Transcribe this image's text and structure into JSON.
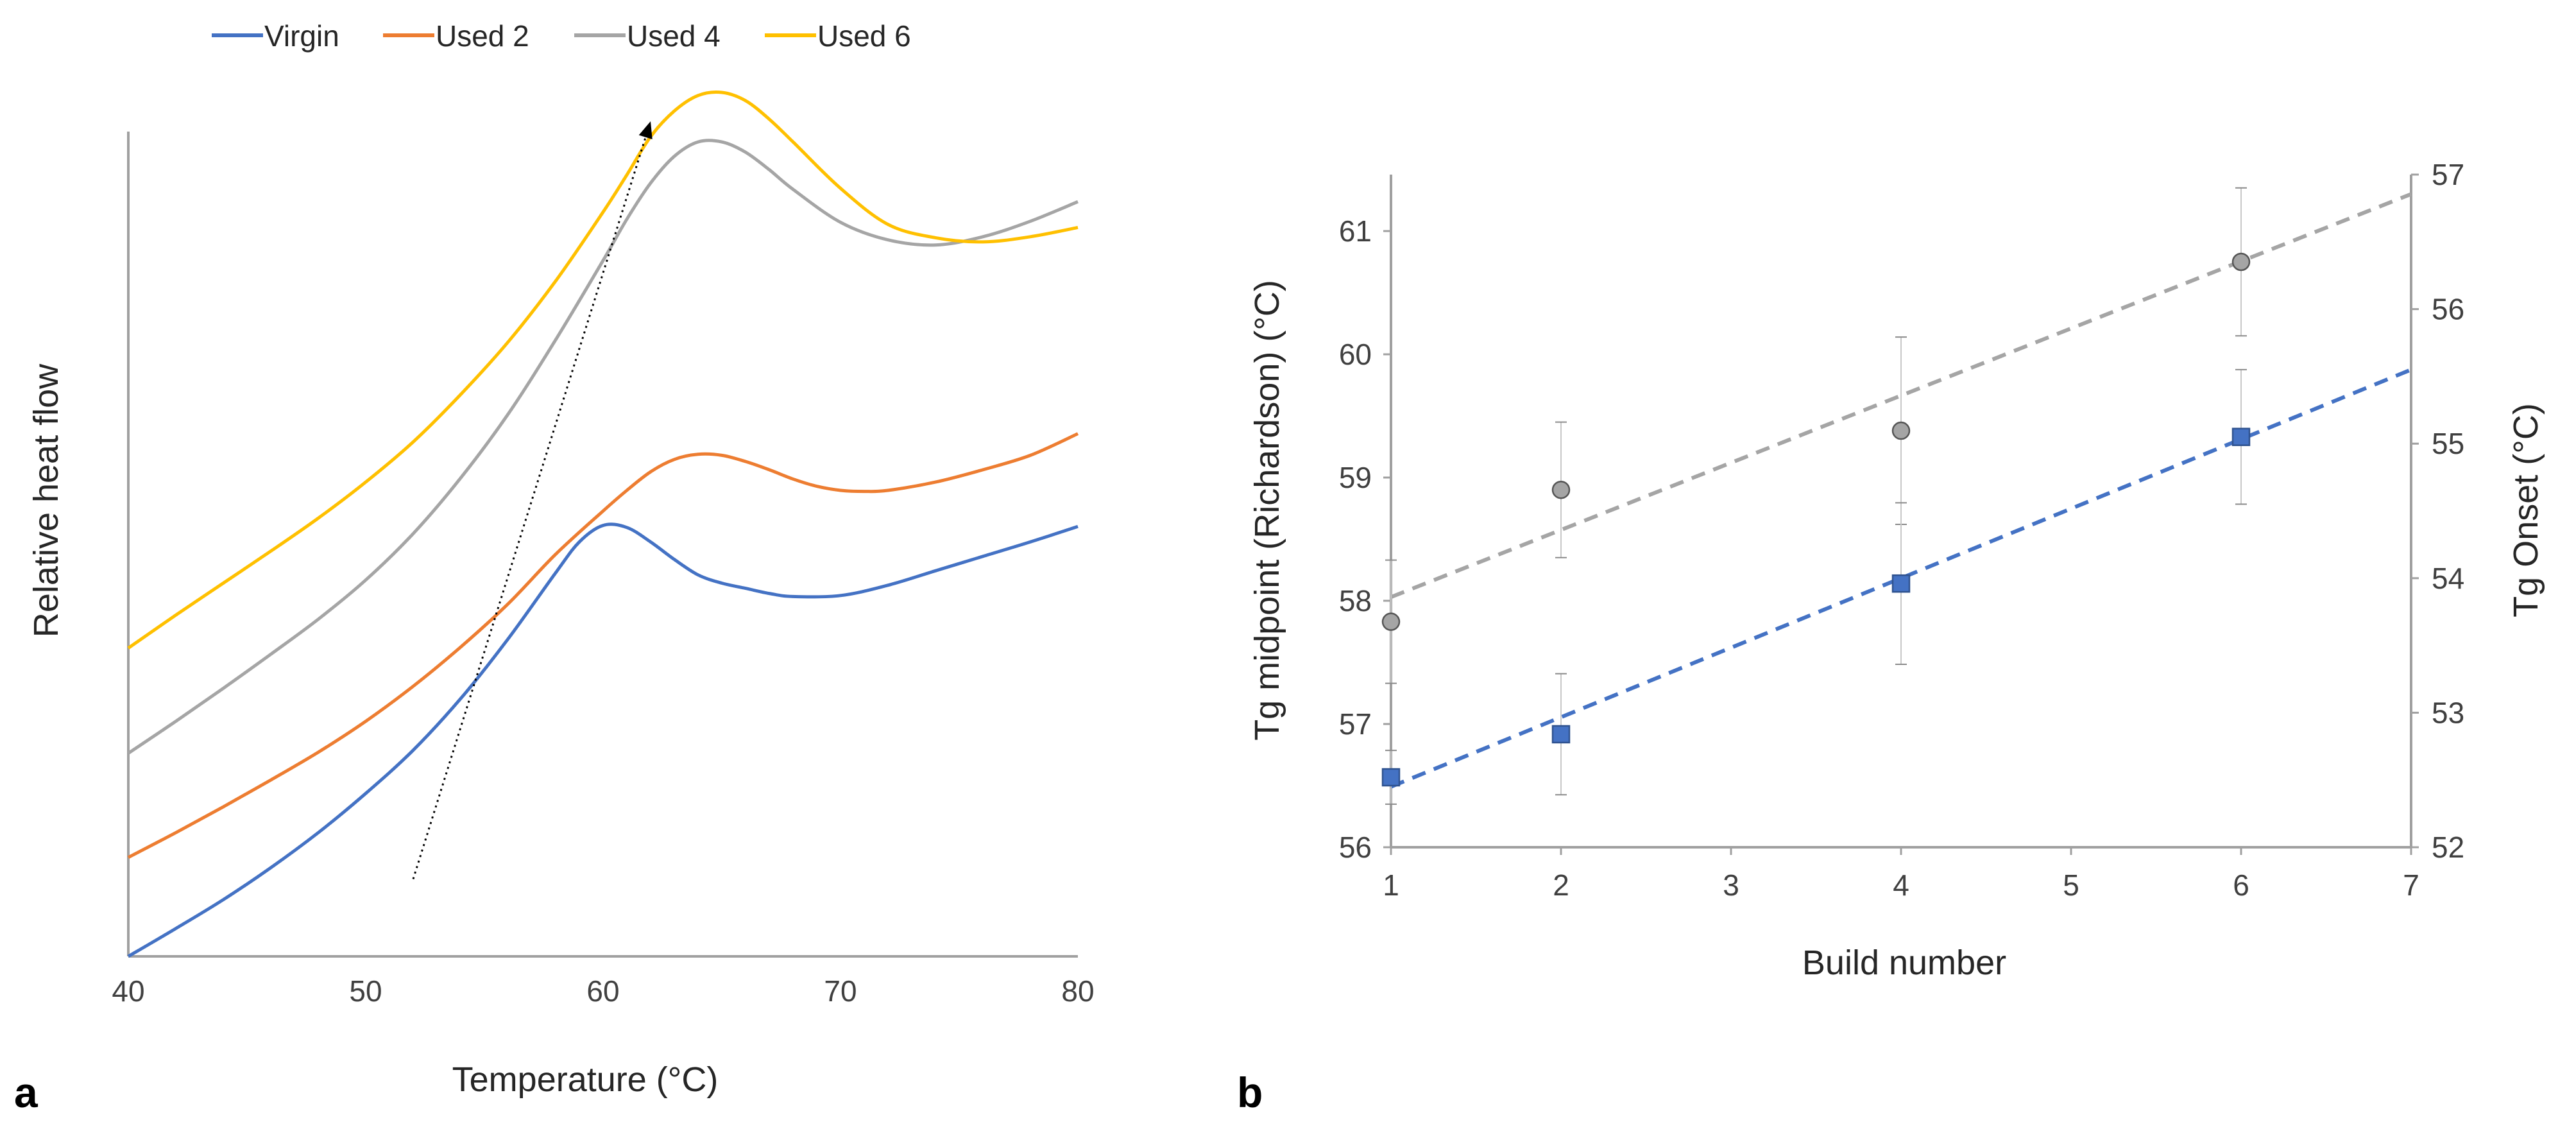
{
  "chart_data": [
    {
      "panel": "a",
      "type": "line",
      "title": "",
      "xlabel": "Temperature (°C)",
      "ylabel": "Relative heat flow",
      "xlim": [
        40,
        80
      ],
      "ylim": [
        0,
        8
      ],
      "xticks": [
        40,
        50,
        60,
        70,
        80
      ],
      "legend_position": "top",
      "series": [
        {
          "name": "Virgin",
          "color": "#4472C4",
          "x": [
            40,
            42,
            44,
            46,
            48,
            50,
            52,
            54,
            56,
            58,
            59,
            60,
            61,
            62,
            63,
            64,
            65,
            66,
            67,
            68,
            70,
            72,
            74,
            76,
            78,
            80
          ],
          "y": [
            0.0,
            0.27,
            0.55,
            0.86,
            1.2,
            1.58,
            2.0,
            2.5,
            3.08,
            3.72,
            4.02,
            4.18,
            4.16,
            4.02,
            3.85,
            3.7,
            3.62,
            3.57,
            3.52,
            3.49,
            3.5,
            3.6,
            3.74,
            3.88,
            4.02,
            4.17
          ]
        },
        {
          "name": "Used 2",
          "color": "#ED7D31",
          "x": [
            40,
            42,
            44,
            46,
            48,
            50,
            52,
            54,
            56,
            58,
            60,
            61,
            62,
            63,
            64,
            65,
            66,
            67,
            68,
            69,
            70,
            71,
            72,
            74,
            76,
            78,
            80
          ],
          "y": [
            0.96,
            1.2,
            1.45,
            1.71,
            1.98,
            2.28,
            2.62,
            3.0,
            3.42,
            3.9,
            4.32,
            4.52,
            4.7,
            4.82,
            4.87,
            4.86,
            4.8,
            4.72,
            4.63,
            4.56,
            4.52,
            4.51,
            4.52,
            4.6,
            4.72,
            4.86,
            5.07
          ]
        },
        {
          "name": "Used 4",
          "color": "#A5A5A5",
          "x": [
            40,
            42,
            44,
            46,
            48,
            50,
            52,
            54,
            56,
            58,
            60,
            61,
            62,
            63,
            64,
            65,
            66,
            67,
            68,
            70,
            72,
            74,
            76,
            78,
            80
          ],
          "y": [
            1.97,
            2.28,
            2.6,
            2.93,
            3.27,
            3.65,
            4.1,
            4.64,
            5.26,
            5.98,
            6.75,
            7.15,
            7.5,
            7.76,
            7.9,
            7.9,
            7.8,
            7.63,
            7.44,
            7.12,
            6.95,
            6.9,
            6.98,
            7.13,
            7.32
          ]
        },
        {
          "name": "Used 6",
          "color": "#FFC000",
          "x": [
            40,
            42,
            44,
            46,
            48,
            50,
            52,
            54,
            56,
            58,
            60,
            61,
            62,
            63,
            64,
            65,
            66,
            67,
            68,
            70,
            72,
            74,
            76,
            78,
            80
          ],
          "y": [
            2.99,
            3.31,
            3.62,
            3.93,
            4.25,
            4.6,
            4.99,
            5.45,
            5.96,
            6.55,
            7.22,
            7.58,
            7.95,
            8.2,
            8.35,
            8.38,
            8.3,
            8.12,
            7.9,
            7.45,
            7.1,
            6.97,
            6.93,
            6.98,
            7.07
          ]
        }
      ],
      "annotations": [
        {
          "type": "dotted-arrow",
          "from": {
            "x": 52,
            "y": 0.75
          },
          "to": {
            "x": 62,
            "y": 8.1
          }
        }
      ]
    },
    {
      "panel": "b",
      "type": "scatter",
      "xlabel": "Build number",
      "ylabel": "Tg midpoint (Richardson) (°C)",
      "y2label": "Tg Onset (°C)",
      "xlim": [
        1,
        7
      ],
      "ylim": [
        56,
        61.5
      ],
      "y2lim": [
        52,
        57
      ],
      "xticks": [
        1,
        2,
        3,
        4,
        5,
        6,
        7
      ],
      "yticks": [
        56,
        57,
        58,
        59,
        60,
        61
      ],
      "y2ticks": [
        52,
        53,
        54,
        55,
        56,
        57
      ],
      "series": [
        {
          "name": "Tg midpoint (Richardson)",
          "axis": "left",
          "marker": "circle",
          "color": "#A5A5A5",
          "x": [
            1,
            2,
            4,
            6
          ],
          "y": [
            57.83,
            58.9,
            59.38,
            60.75
          ],
          "err": [
            0.5,
            0.55,
            0.76,
            0.6
          ],
          "trend": {
            "x": [
              1,
              7
            ],
            "y": [
              58.03,
              61.3
            ]
          }
        },
        {
          "name": "Tg Onset",
          "axis": "right",
          "marker": "square",
          "color": "#4472C4",
          "x": [
            1,
            2,
            4,
            6
          ],
          "y": [
            52.52,
            52.84,
            53.96,
            55.05
          ],
          "err": [
            0.2,
            0.45,
            0.6,
            0.5
          ],
          "trend": {
            "x": [
              1,
              7
            ],
            "y": [
              52.45,
              55.55
            ]
          }
        }
      ]
    }
  ],
  "labels": {
    "panel_a": "a",
    "panel_b": "b"
  }
}
